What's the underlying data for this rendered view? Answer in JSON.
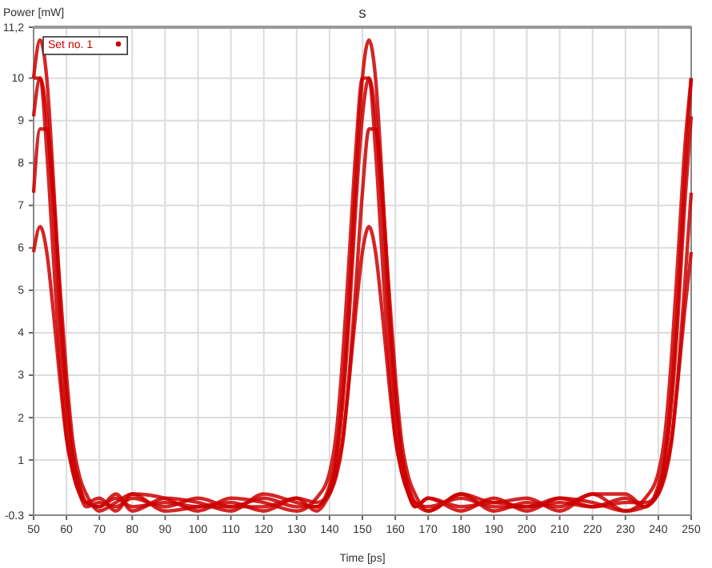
{
  "chart_data": {
    "type": "line",
    "title": "S",
    "xlabel": "Time [ps]",
    "ylabel": "Power [mW]",
    "x": [
      50,
      52,
      54,
      56,
      58,
      60,
      62,
      64,
      66,
      70,
      75,
      80,
      90,
      100,
      110,
      120,
      130,
      136,
      140,
      142,
      144,
      146,
      148,
      150,
      152,
      154,
      156,
      158,
      160,
      162,
      164,
      166,
      170,
      180,
      190,
      200,
      210,
      220,
      230,
      236,
      240,
      242,
      244,
      246,
      248,
      250
    ],
    "series": [
      {
        "name": "Set no. 1",
        "color": "#cc0000",
        "values": [
          9.1,
          10,
          9.1,
          7.0,
          4.4,
          2.3,
          1.0,
          0.3,
          0,
          -0.1,
          0.1,
          -0.1,
          0,
          -0.1,
          -0.1,
          0.1,
          -0.1,
          -0.1,
          0.3,
          1.0,
          2.3,
          4.4,
          7.0,
          9.1,
          10,
          9.1,
          7.0,
          4.4,
          2.3,
          1.0,
          0.3,
          0,
          -0.1,
          0.1,
          -0.1,
          -0.1,
          0,
          -0.1,
          0.1,
          -0.1,
          0.3,
          1.0,
          2.3,
          4.4,
          7.0,
          9.1
        ]
      },
      {
        "color": "#cc0000",
        "values": [
          7.3,
          8.8,
          8.8,
          7.3,
          5.1,
          3.0,
          1.4,
          0.6,
          0.2,
          -0.2,
          0,
          0.2,
          -0.2,
          -0.1,
          0,
          -0.2,
          0.1,
          -0.2,
          0.2,
          0.6,
          1.4,
          3.0,
          5.1,
          7.3,
          8.8,
          8.8,
          7.3,
          5.1,
          3.0,
          1.4,
          0.6,
          0.2,
          -0.2,
          0.2,
          -0.2,
          0,
          -0.1,
          0.2,
          -0.2,
          -0.1,
          0.2,
          0.6,
          1.4,
          3.0,
          5.1,
          7.3
        ]
      },
      {
        "color": "#cc0000",
        "values": [
          10.0,
          10.0,
          8.3,
          5.8,
          3.4,
          1.6,
          0.7,
          0.2,
          0,
          0.1,
          -0.2,
          0.2,
          0.1,
          -0.2,
          0.1,
          0,
          -0.2,
          0.1,
          0.7,
          1.6,
          3.4,
          5.8,
          8.3,
          10.0,
          10.0,
          8.3,
          5.8,
          3.4,
          1.6,
          0.7,
          0.2,
          -0.1,
          0.1,
          -0.2,
          0.1,
          -0.2,
          0.1,
          0,
          -0.2,
          0.1,
          0.7,
          1.6,
          3.4,
          5.8,
          8.3,
          10.0
        ]
      },
      {
        "color": "#cc0000",
        "values": [
          10.0,
          10.9,
          10.0,
          7.6,
          4.8,
          2.6,
          1.1,
          0.4,
          0,
          -0.1,
          0.2,
          -0.2,
          0.1,
          0,
          -0.2,
          0.2,
          0,
          -0.1,
          0.4,
          1.1,
          2.6,
          4.8,
          7.6,
          10.0,
          10.9,
          10.0,
          7.6,
          4.8,
          2.6,
          1.1,
          0.4,
          0,
          -0.2,
          0.2,
          0,
          0.1,
          -0.2,
          0.2,
          0.2,
          -0.1,
          0.4,
          1.1,
          2.6,
          4.8,
          7.6,
          10.0
        ]
      },
      {
        "color": "#cc0000",
        "values": [
          5.9,
          6.5,
          5.9,
          4.5,
          2.9,
          1.5,
          0.7,
          0.2,
          -0.1,
          0,
          -0.1,
          0.1,
          -0.1,
          0.1,
          -0.1,
          -0.1,
          0.1,
          0,
          0.2,
          0.7,
          1.5,
          2.9,
          4.5,
          5.9,
          6.5,
          5.9,
          4.5,
          2.9,
          1.5,
          0.7,
          0.2,
          -0.1,
          0.1,
          -0.1,
          0,
          -0.1,
          0.1,
          -0.1,
          0,
          0,
          0.2,
          0.7,
          1.5,
          2.9,
          4.5,
          5.9
        ]
      }
    ],
    "xlim": [
      50,
      250
    ],
    "xticks": [
      50,
      60,
      70,
      80,
      90,
      100,
      110,
      120,
      130,
      140,
      150,
      160,
      170,
      180,
      190,
      200,
      210,
      220,
      230,
      240,
      250
    ],
    "ylim": [
      -0.3,
      11.2
    ],
    "yticks": [
      -0.3,
      1,
      2,
      3,
      4,
      5,
      6,
      7,
      8,
      9,
      10,
      {
        "value": 11.2,
        "label": "11,2"
      }
    ],
    "grid": true,
    "legend": "top left",
    "marker": "none",
    "line_style": "solid"
  }
}
